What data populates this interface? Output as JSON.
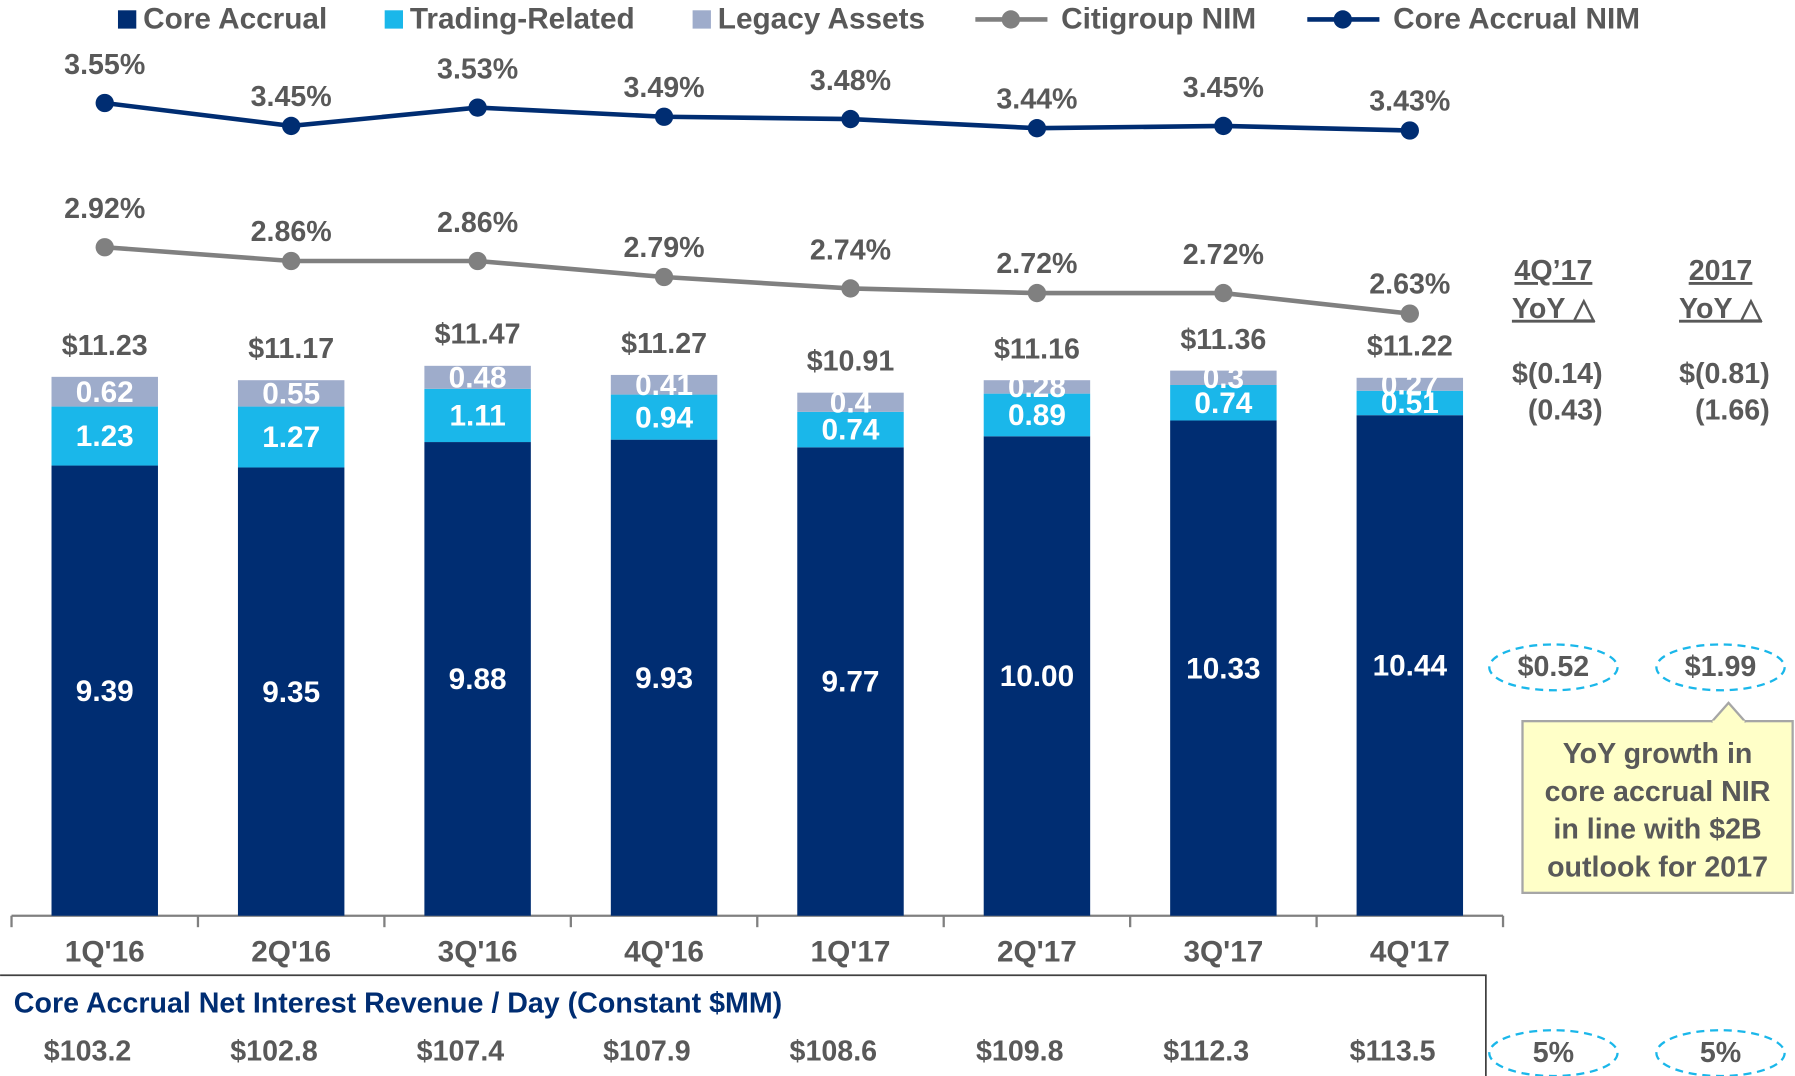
{
  "chart_data": {
    "type": "bar",
    "stacked": true,
    "categories": [
      "1Q'16",
      "2Q'16",
      "3Q'16",
      "4Q'16",
      "1Q'17",
      "2Q'17",
      "3Q'17",
      "4Q'17"
    ],
    "ylim": [
      0,
      19.1
    ],
    "y2lim": [
      0,
      4
    ],
    "series": [
      {
        "name": "Core Accrual",
        "color": "#002d72",
        "values": [
          9.39,
          9.35,
          9.88,
          9.93,
          9.77,
          10.0,
          10.33,
          10.44
        ],
        "value_labels": [
          "9.39",
          "9.35",
          "9.88",
          "9.93",
          "9.77",
          "10.00",
          "10.33",
          "10.44"
        ]
      },
      {
        "name": "Trading-Related",
        "color": "#1ab7ea",
        "values": [
          1.23,
          1.27,
          1.11,
          0.94,
          0.74,
          0.89,
          0.74,
          0.51
        ]
      },
      {
        "name": "Legacy Assets",
        "color": "#9eaccb",
        "values": [
          0.62,
          0.55,
          0.48,
          0.41,
          0.4,
          0.28,
          0.3,
          0.27
        ]
      },
      {
        "name": "Citigroup NIM",
        "type": "line",
        "axis": "y2",
        "color": "#808080",
        "values": [
          2.92,
          2.86,
          2.86,
          2.79,
          2.74,
          2.72,
          2.72,
          2.63
        ],
        "value_labels": [
          "2.92%",
          "2.86%",
          "2.86%",
          "2.79%",
          "2.74%",
          "2.72%",
          "2.72%",
          "2.63%"
        ]
      },
      {
        "name": "Core Accrual NIM",
        "type": "line",
        "axis": "y2",
        "color": "#002d72",
        "values": [
          3.55,
          3.45,
          3.53,
          3.49,
          3.48,
          3.44,
          3.45,
          3.43
        ],
        "value_labels": [
          "3.55%",
          "3.45%",
          "3.53%",
          "3.49%",
          "3.48%",
          "3.44%",
          "3.45%",
          "3.43%"
        ]
      }
    ],
    "totals": {
      "values": [
        11.23,
        11.17,
        11.47,
        11.27,
        10.91,
        11.16,
        11.36,
        11.22
      ],
      "value_labels": [
        "$11.23",
        "$11.17",
        "$11.47",
        "$11.27",
        "$10.91",
        "$11.16",
        "$11.36",
        "$11.22"
      ]
    },
    "per_day": {
      "title": "Core Accrual Net Interest Revenue / Day (Constant $MM)",
      "values": [
        103.2,
        102.8,
        107.4,
        107.9,
        108.6,
        109.8,
        112.3,
        113.5
      ],
      "value_labels": [
        "$103.2",
        "$102.8",
        "$107.4",
        "$107.9",
        "$108.6",
        "$109.8",
        "$112.3",
        "$113.5"
      ]
    },
    "yoy": [
      {
        "header": [
          "4Q’17",
          "YoY △"
        ],
        "legacy": "$(0.14)",
        "trading": "(0.43)",
        "core": "$0.52",
        "per_day": "5%"
      },
      {
        "header": [
          "2017",
          "YoY △"
        ],
        "legacy": "$(0.81)",
        "trading": "(1.66)",
        "core": "$1.99",
        "per_day": "5%"
      }
    ],
    "callout": [
      "YoY growth in",
      "core accrual NIR",
      "in line with $2B",
      "outlook for 2017"
    ]
  }
}
